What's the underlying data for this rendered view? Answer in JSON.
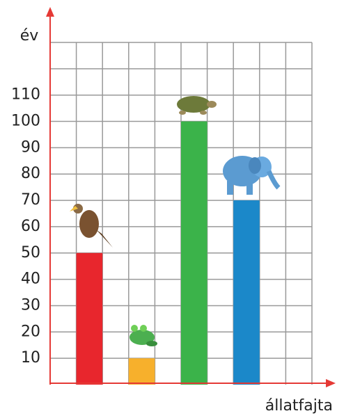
{
  "chart_data": {
    "type": "bar",
    "y_label": "év",
    "x_label": "állatfajta",
    "categories": [
      null,
      null,
      null,
      null
    ],
    "values": [
      50,
      10,
      100,
      70
    ],
    "colors": [
      "#e8262d",
      "#f7b02c",
      "#3bb34a",
      "#1b88c9"
    ],
    "ylim": [
      0,
      130
    ],
    "yticks": [
      10,
      20,
      30,
      40,
      50,
      60,
      70,
      80,
      90,
      100,
      110
    ]
  }
}
